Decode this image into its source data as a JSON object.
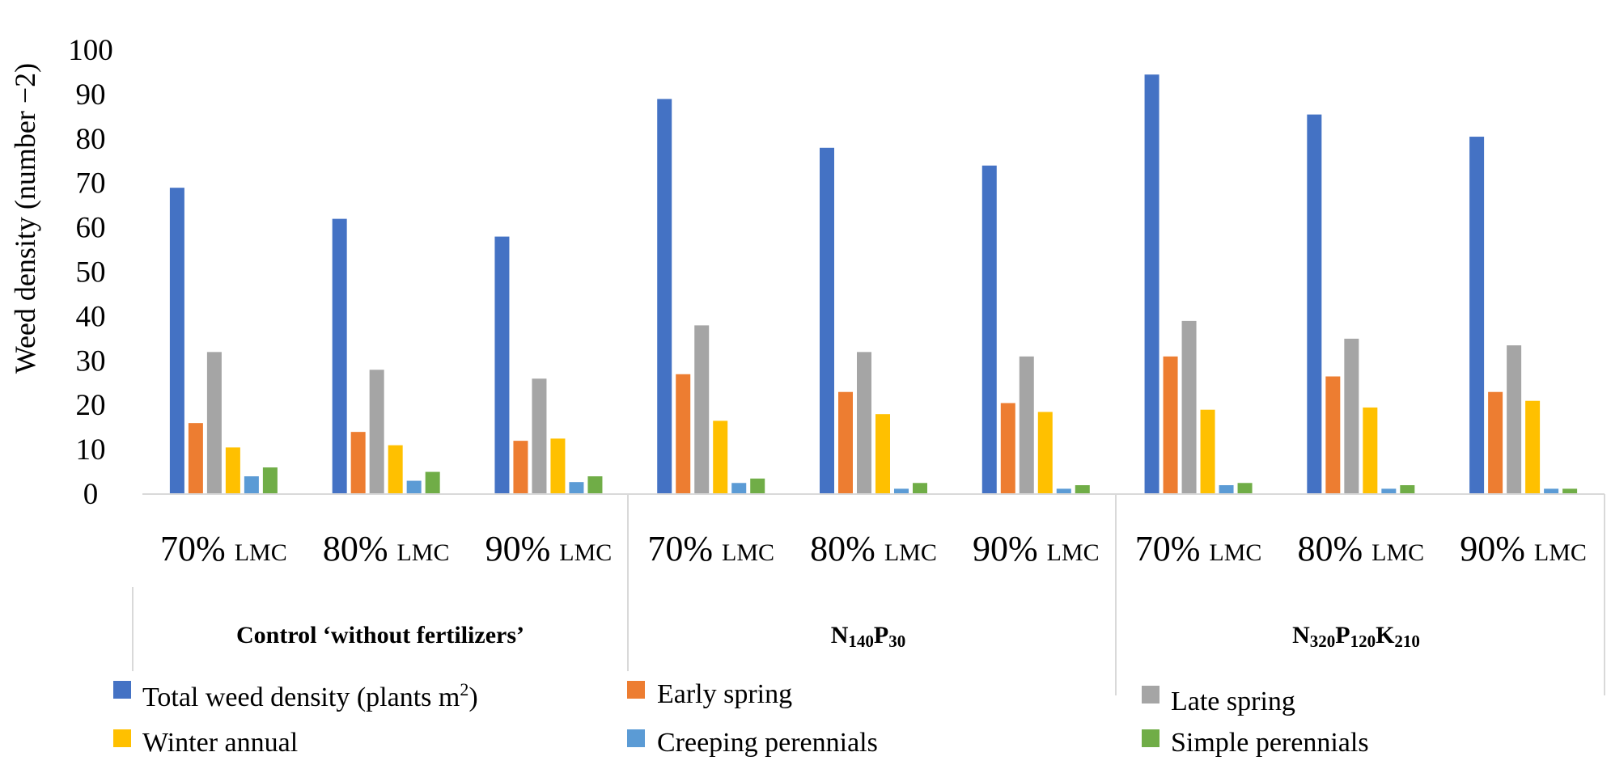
{
  "chart_data": {
    "type": "bar",
    "title": "",
    "ylabel": "Weed density (number −2)",
    "xlabel": "",
    "ylim": [
      0,
      100
    ],
    "y_ticks": [
      "100",
      "90",
      "80",
      "70",
      "60",
      "50",
      "40",
      "30",
      "20",
      "10",
      "0"
    ],
    "grid": false,
    "categories": [
      {
        "pct": "70%",
        "unit": "LMC"
      },
      {
        "pct": "80%",
        "unit": "LMC"
      },
      {
        "pct": "90%",
        "unit": "LMC"
      },
      {
        "pct": "70%",
        "unit": "LMC"
      },
      {
        "pct": "80%",
        "unit": "LMC"
      },
      {
        "pct": "90%",
        "unit": "LMC"
      },
      {
        "pct": "70%",
        "unit": "LMC"
      },
      {
        "pct": "80%",
        "unit": "LMC"
      },
      {
        "pct": "90%",
        "unit": "LMC"
      }
    ],
    "groups": [
      {
        "label": "Control ‘without fertilizers’",
        "parts": [
          {
            "t": "Control ‘without fertilizers’",
            "sub": false
          }
        ]
      },
      {
        "label": "N140P30",
        "parts": [
          {
            "t": "N",
            "sub": false
          },
          {
            "t": "140",
            "sub": true
          },
          {
            "t": "P",
            "sub": false
          },
          {
            "t": "30",
            "sub": true
          }
        ]
      },
      {
        "label": "N320P120K210",
        "parts": [
          {
            "t": "N",
            "sub": false
          },
          {
            "t": "320",
            "sub": true
          },
          {
            "t": "P",
            "sub": false
          },
          {
            "t": "120",
            "sub": true
          },
          {
            "t": "K",
            "sub": false
          },
          {
            "t": "210",
            "sub": true
          }
        ]
      }
    ],
    "series": [
      {
        "name": "Total weed density (plants m2)",
        "legend_main": "Total weed density (plants m",
        "legend_sup": "2",
        "legend_tail": ")",
        "color": "#4472C4",
        "values": [
          69,
          62,
          58,
          89,
          78,
          74,
          94.5,
          85.5,
          80.5
        ]
      },
      {
        "name": "Early spring",
        "legend_main": "Early spring",
        "color": "#ED7D31",
        "values": [
          16,
          14,
          12,
          27,
          23,
          20.5,
          31,
          26.5,
          23
        ]
      },
      {
        "name": "Late spring",
        "legend_main": "Late spring",
        "color": "#A5A5A5",
        "values": [
          32,
          28,
          26,
          38,
          32,
          31,
          39,
          35,
          33.5
        ]
      },
      {
        "name": "Winter annual",
        "legend_main": "Winter annual",
        "color": "#FFC000",
        "values": [
          10.5,
          11,
          12.5,
          16.5,
          18,
          18.5,
          19,
          19.5,
          21
        ]
      },
      {
        "name": "Creeping perennials",
        "legend_main": "Creeping perennials",
        "color": "#5B9BD5",
        "values": [
          4,
          3,
          2.7,
          2.5,
          1.2,
          1.2,
          2,
          1.2,
          1.2
        ]
      },
      {
        "name": "Simple perennials",
        "legend_main": "Simple perennials",
        "color": "#70AD47",
        "values": [
          6,
          5,
          4,
          3.5,
          2.5,
          2,
          2.5,
          2,
          1.2
        ]
      }
    ],
    "legend": "bottom"
  }
}
